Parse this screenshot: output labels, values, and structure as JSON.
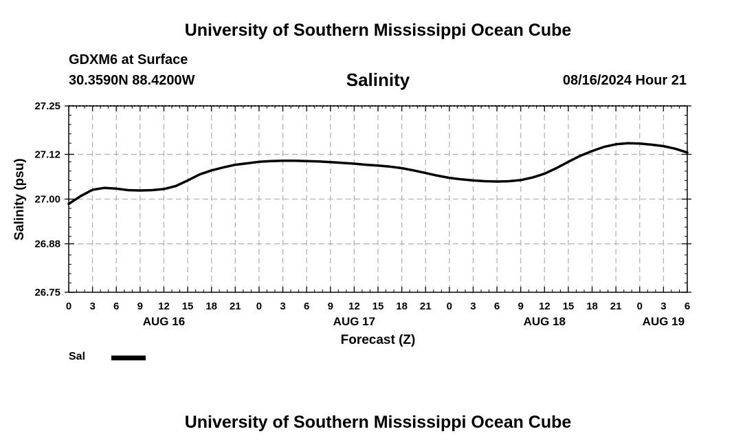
{
  "header": {
    "title": "University of Southern Mississippi Ocean Cube",
    "station": "GDXM6 at Surface",
    "coords": "30.3590N  88.4200W",
    "chart_title": "Salinity",
    "datetime": "08/16/2024 Hour 21"
  },
  "footer": {
    "title": "University of Southern Mississippi Ocean Cube"
  },
  "legend": {
    "label": "Sal",
    "color": "#000000"
  },
  "chart_data": {
    "type": "line",
    "title": "Salinity",
    "xlabel": "Forecast (Z)",
    "ylabel": "Salinity (psu)",
    "xlim": [
      0,
      78
    ],
    "ylim": [
      26.75,
      27.25
    ],
    "yticks": [
      26.75,
      26.88,
      27.0,
      27.12,
      27.25
    ],
    "ytick_labels": [
      "26.75",
      "26.88",
      "27.00",
      "27.12",
      "27.25"
    ],
    "xticks": [
      0,
      3,
      6,
      9,
      12,
      15,
      18,
      21,
      24,
      27,
      30,
      33,
      36,
      39,
      42,
      45,
      48,
      51,
      54,
      57,
      60,
      63,
      66,
      69,
      72,
      75,
      78
    ],
    "xtick_labels": [
      "0",
      "3",
      "6",
      "9",
      "12",
      "15",
      "18",
      "21",
      "0",
      "3",
      "6",
      "9",
      "12",
      "15",
      "18",
      "21",
      "0",
      "3",
      "6",
      "9",
      "12",
      "15",
      "18",
      "21",
      "0",
      "3",
      "6"
    ],
    "date_labels": [
      {
        "x": 12,
        "label": "AUG 16"
      },
      {
        "x": 36,
        "label": "AUG 17"
      },
      {
        "x": 60,
        "label": "AUG 18"
      },
      {
        "x": 75,
        "label": "AUG 19"
      }
    ],
    "grid": true,
    "legend_position": "bottom-left",
    "series": [
      {
        "name": "Sal",
        "x": [
          0,
          1.5,
          3,
          4.5,
          6,
          7.5,
          9,
          10.5,
          12,
          13.5,
          15,
          16.5,
          18,
          19.5,
          21,
          22.5,
          24,
          25.5,
          27,
          28.5,
          30,
          31.5,
          33,
          34.5,
          36,
          37.5,
          39,
          40.5,
          42,
          43.5,
          45,
          46.5,
          48,
          49.5,
          51,
          52.5,
          54,
          55.5,
          57,
          58.5,
          60,
          61.5,
          63,
          64.5,
          66,
          67.5,
          69,
          70.5,
          72,
          73.5,
          75,
          76.5,
          78
        ],
        "values": [
          26.987,
          27.008,
          27.025,
          27.03,
          27.028,
          27.024,
          27.023,
          27.024,
          27.027,
          27.035,
          27.05,
          27.066,
          27.077,
          27.085,
          27.092,
          27.096,
          27.1,
          27.102,
          27.103,
          27.103,
          27.102,
          27.101,
          27.099,
          27.097,
          27.095,
          27.092,
          27.09,
          27.087,
          27.083,
          27.077,
          27.07,
          27.063,
          27.057,
          27.053,
          27.05,
          27.048,
          27.047,
          27.048,
          27.051,
          27.058,
          27.068,
          27.083,
          27.1,
          27.116,
          27.129,
          27.14,
          27.147,
          27.15,
          27.149,
          27.146,
          27.142,
          27.135,
          27.125
        ]
      }
    ]
  }
}
